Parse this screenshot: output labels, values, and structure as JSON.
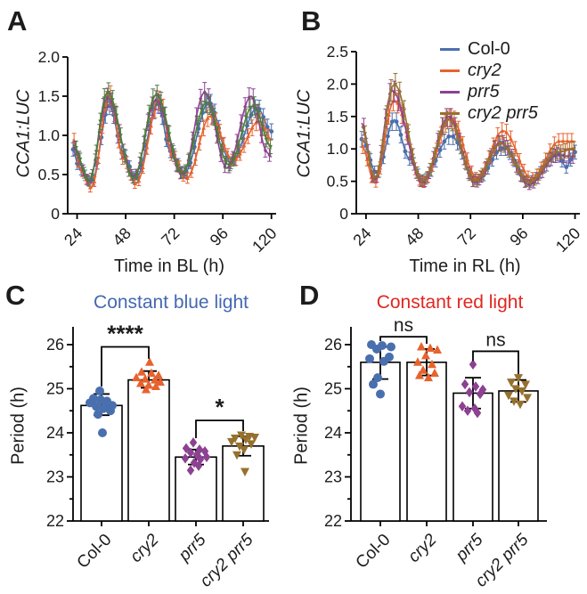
{
  "figure": {
    "background": "#ffffff"
  },
  "chart_data": [
    {
      "id": "A",
      "type": "line",
      "panel_label": "A",
      "xlabel": "Time in BL (h)",
      "ylabel": "CCA1:LUC",
      "ylabel_italic": true,
      "ylim": [
        0,
        2.0
      ],
      "xrange": [
        22,
        120
      ],
      "yticks": [
        [
          0,
          "0"
        ],
        [
          0.5,
          "0.5"
        ],
        [
          1.0,
          "1.0"
        ],
        [
          1.5,
          "1.5"
        ],
        [
          2.0,
          "2.0"
        ]
      ],
      "xticks": [
        [
          24,
          "24"
        ],
        [
          48,
          "48"
        ],
        [
          72,
          "72"
        ],
        [
          96,
          "96"
        ],
        [
          120,
          "120"
        ]
      ],
      "marker_step": 2,
      "err_base": 0.04,
      "err_amp": 0.11,
      "series": [
        {
          "name": "Col-0",
          "italic": false,
          "color": "#4a6fae",
          "marker": "circle",
          "anchors": [
            [
              22,
              0.82
            ],
            [
              25,
              0.58
            ],
            [
              31,
              0.4
            ],
            [
              40,
              1.38
            ],
            [
              47,
              0.75
            ],
            [
              53,
              0.45
            ],
            [
              64,
              1.4
            ],
            [
              70,
              0.8
            ],
            [
              77,
              0.52
            ],
            [
              89,
              1.42
            ],
            [
              100,
              0.65
            ],
            [
              113,
              1.35
            ],
            [
              120,
              1.05
            ]
          ]
        },
        {
          "name": "cry2",
          "italic": true,
          "color": "#e8622d",
          "marker": "triangle-up",
          "anchors": [
            [
              22,
              0.95
            ],
            [
              26,
              0.55
            ],
            [
              31,
              0.33
            ],
            [
              40,
              1.52
            ],
            [
              47,
              0.7
            ],
            [
              53,
              0.38
            ],
            [
              65,
              1.45
            ],
            [
              71,
              0.75
            ],
            [
              78,
              0.45
            ],
            [
              90,
              1.25
            ],
            [
              101,
              0.68
            ],
            [
              114,
              1.18
            ],
            [
              120,
              0.95
            ]
          ]
        },
        {
          "name": "prr5",
          "italic": true,
          "color": "#8d4192",
          "marker": "diamond",
          "anchors": [
            [
              22,
              0.85
            ],
            [
              30,
              0.42
            ],
            [
              39,
              1.48
            ],
            [
              52,
              0.48
            ],
            [
              63,
              1.45
            ],
            [
              76,
              0.5
            ],
            [
              87,
              1.55
            ],
            [
              98,
              0.58
            ],
            [
              110,
              1.5
            ],
            [
              118,
              0.78
            ],
            [
              120,
              0.72
            ]
          ]
        },
        {
          "name": "cry2 prr5",
          "italic": true,
          "color": "#4e7d3c",
          "marker": "triangle-down",
          "anchors": [
            [
              22,
              0.88
            ],
            [
              30,
              0.42
            ],
            [
              39,
              1.55
            ],
            [
              52,
              0.45
            ],
            [
              63,
              1.52
            ],
            [
              76,
              0.52
            ],
            [
              88,
              1.42
            ],
            [
              99,
              0.62
            ],
            [
              111,
              1.38
            ],
            [
              120,
              0.85
            ]
          ]
        }
      ]
    },
    {
      "id": "B",
      "type": "line",
      "panel_label": "B",
      "xlabel": "Time in RL (h)",
      "ylabel": "CCA1:LUC",
      "ylabel_italic": true,
      "ylim": [
        0,
        2.5
      ],
      "xrange": [
        22,
        120
      ],
      "yticks": [
        [
          0,
          "0"
        ],
        [
          0.5,
          "0.5"
        ],
        [
          1.0,
          "1.0"
        ],
        [
          1.5,
          "1.5"
        ],
        [
          2.0,
          "2.0"
        ],
        [
          2.5,
          "2.5"
        ]
      ],
      "xticks": [
        [
          24,
          "24"
        ],
        [
          48,
          "48"
        ],
        [
          72,
          "72"
        ],
        [
          96,
          "96"
        ],
        [
          120,
          "120"
        ]
      ],
      "marker_step": 2,
      "err_base": 0.05,
      "err_amp": 0.15,
      "legend": true,
      "series": [
        {
          "name": "Col-0",
          "italic": false,
          "color": "#4a6fae",
          "marker": "circle",
          "anchors": [
            [
              22,
              1.15
            ],
            [
              29,
              0.62
            ],
            [
              37,
              1.45
            ],
            [
              44,
              0.85
            ],
            [
              50,
              0.52
            ],
            [
              63,
              1.2
            ],
            [
              75,
              0.52
            ],
            [
              87,
              1.02
            ],
            [
              99,
              0.5
            ],
            [
              112,
              0.92
            ],
            [
              116,
              0.72
            ],
            [
              120,
              0.95
            ]
          ]
        },
        {
          "name": "cry2",
          "italic": true,
          "color": "#e8622d",
          "marker": "triangle-up",
          "anchors": [
            [
              22,
              1.05
            ],
            [
              28,
              0.48
            ],
            [
              37,
              1.75
            ],
            [
              50,
              0.48
            ],
            [
              63,
              1.48
            ],
            [
              75,
              0.55
            ],
            [
              87,
              1.28
            ],
            [
              100,
              0.55
            ],
            [
              113,
              1.12
            ],
            [
              120,
              1.12
            ]
          ]
        },
        {
          "name": "prr5",
          "italic": true,
          "color": "#8d4192",
          "marker": "diamond",
          "anchors": [
            [
              22,
              1.4
            ],
            [
              28,
              0.52
            ],
            [
              36,
              1.9
            ],
            [
              50,
              0.48
            ],
            [
              62,
              1.5
            ],
            [
              74,
              0.48
            ],
            [
              86,
              1.1
            ],
            [
              99,
              0.45
            ],
            [
              112,
              0.9
            ],
            [
              120,
              0.88
            ]
          ]
        },
        {
          "name": "cry2 prr5",
          "italic": true,
          "color": "#96712e",
          "marker": "triangle-down",
          "anchors": [
            [
              22,
              1.35
            ],
            [
              28,
              0.55
            ],
            [
              37,
              2.0
            ],
            [
              50,
              0.5
            ],
            [
              62,
              1.45
            ],
            [
              74,
              0.5
            ],
            [
              86,
              1.08
            ],
            [
              99,
              0.48
            ],
            [
              112,
              0.95
            ],
            [
              120,
              1.0
            ]
          ]
        }
      ]
    },
    {
      "id": "C",
      "type": "bar-scatter",
      "panel_label": "C",
      "title": "Constant blue light",
      "title_color": "#4468b1",
      "ylabel": "Period (h)",
      "ylabel_italic": false,
      "ylim": [
        22,
        26.4
      ],
      "minor_step": 0.5,
      "yticks": [
        [
          22,
          "22"
        ],
        [
          23,
          "23"
        ],
        [
          24,
          "24"
        ],
        [
          25,
          "25"
        ],
        [
          26,
          "26"
        ]
      ],
      "categories": [
        {
          "name": "Col-0",
          "italic": false,
          "color": "#4a6fae",
          "marker": "circle",
          "mean": 24.62,
          "err": [
            24.4,
            24.88
          ],
          "points": [
            [
              -2,
              24.95
            ],
            [
              -9,
              24.78
            ],
            [
              -1,
              24.75
            ],
            [
              6,
              24.72
            ],
            [
              -13,
              24.68
            ],
            [
              5,
              24.65
            ],
            [
              12,
              24.62
            ],
            [
              -6,
              24.6
            ],
            [
              2,
              24.55
            ],
            [
              10,
              24.5
            ],
            [
              -4,
              24.42
            ],
            [
              1,
              24.0
            ]
          ]
        },
        {
          "name": "cry2",
          "italic": true,
          "color": "#e8622d",
          "marker": "triangle-up",
          "mean": 25.2,
          "err": [
            25.02,
            25.4
          ],
          "points": [
            [
              1,
              25.6
            ],
            [
              -8,
              25.38
            ],
            [
              3,
              25.35
            ],
            [
              11,
              25.3
            ],
            [
              -14,
              25.25
            ],
            [
              -4,
              25.22
            ],
            [
              7,
              25.2
            ],
            [
              13,
              25.15
            ],
            [
              -9,
              25.12
            ],
            [
              0,
              25.08
            ],
            [
              8,
              25.05
            ],
            [
              -3,
              24.98
            ]
          ]
        },
        {
          "name": "prr5",
          "italic": true,
          "color": "#8d4192",
          "marker": "diamond",
          "mean": 23.45,
          "err": [
            23.28,
            23.62
          ],
          "points": [
            [
              -3,
              23.78
            ],
            [
              -11,
              23.65
            ],
            [
              4,
              23.62
            ],
            [
              10,
              23.58
            ],
            [
              -6,
              23.55
            ],
            [
              1,
              23.5
            ],
            [
              12,
              23.45
            ],
            [
              -12,
              23.42
            ],
            [
              5,
              23.4
            ],
            [
              -2,
              23.32
            ],
            [
              3,
              23.25
            ],
            [
              -6,
              23.15
            ]
          ]
        },
        {
          "name": "cry2 prr5",
          "italic": true,
          "color": "#96712e",
          "marker": "triangle-down",
          "mean": 23.7,
          "err": [
            23.48,
            23.92
          ],
          "points": [
            [
              -2,
              23.95
            ],
            [
              7,
              23.92
            ],
            [
              13,
              23.9
            ],
            [
              -9,
              23.88
            ],
            [
              3,
              23.85
            ],
            [
              -13,
              23.8
            ],
            [
              9,
              23.75
            ],
            [
              -4,
              23.7
            ],
            [
              1,
              23.62
            ],
            [
              -7,
              23.5
            ],
            [
              2,
              23.12
            ]
          ]
        }
      ],
      "sig": [
        {
          "a": 0,
          "b": 1,
          "label": "****",
          "y": 25.95,
          "la": 25.05,
          "lb": 25.68
        },
        {
          "a": 2,
          "b": 3,
          "label": "*",
          "y": 24.28,
          "la": 23.88,
          "lb": 24.04
        }
      ]
    },
    {
      "id": "D",
      "type": "bar-scatter",
      "panel_label": "D",
      "title": "Constant red light",
      "title_color": "#e02621",
      "ylabel": "Period (h)",
      "ylabel_italic": false,
      "ylim": [
        22,
        26.4
      ],
      "minor_step": 0.5,
      "yticks": [
        [
          22,
          "22"
        ],
        [
          23,
          "23"
        ],
        [
          24,
          "24"
        ],
        [
          25,
          "25"
        ],
        [
          26,
          "26"
        ]
      ],
      "categories": [
        {
          "name": "Col-0",
          "italic": false,
          "color": "#4a6fae",
          "marker": "circle",
          "mean": 25.6,
          "err": [
            25.22,
            25.95
          ],
          "points": [
            [
              -10,
              26.0
            ],
            [
              2,
              25.98
            ],
            [
              12,
              25.95
            ],
            [
              -4,
              25.9
            ],
            [
              10,
              25.72
            ],
            [
              -12,
              25.68
            ],
            [
              4,
              25.62
            ],
            [
              -3,
              25.25
            ],
            [
              -8,
              25.1
            ],
            [
              0,
              24.88
            ]
          ]
        },
        {
          "name": "cry2",
          "italic": true,
          "color": "#e8622d",
          "marker": "triangle-up",
          "mean": 25.6,
          "err": [
            25.3,
            25.9
          ],
          "points": [
            [
              -6,
              25.95
            ],
            [
              4,
              25.92
            ],
            [
              12,
              25.88
            ],
            [
              -1,
              25.75
            ],
            [
              -10,
              25.6
            ],
            [
              6,
              25.55
            ],
            [
              -4,
              25.42
            ],
            [
              9,
              25.35
            ],
            [
              -8,
              25.3
            ],
            [
              2,
              25.25
            ]
          ]
        },
        {
          "name": "prr5",
          "italic": true,
          "color": "#8d4192",
          "marker": "diamond",
          "mean": 24.9,
          "err": [
            24.55,
            25.25
          ],
          "points": [
            [
              0,
              25.55
            ],
            [
              -9,
              25.1
            ],
            [
              3,
              25.05
            ],
            [
              11,
              24.98
            ],
            [
              -4,
              24.92
            ],
            [
              8,
              24.88
            ],
            [
              -12,
              24.6
            ],
            [
              2,
              24.55
            ],
            [
              -6,
              24.5
            ],
            [
              5,
              24.45
            ]
          ]
        },
        {
          "name": "cry2 prr5",
          "italic": true,
          "color": "#96712e",
          "marker": "triangle-down",
          "mean": 24.95,
          "err": [
            24.7,
            25.2
          ],
          "points": [
            [
              0,
              25.25
            ],
            [
              -8,
              25.15
            ],
            [
              8,
              25.1
            ],
            [
              -3,
              25.0
            ],
            [
              4,
              24.95
            ],
            [
              -11,
              24.85
            ],
            [
              10,
              24.8
            ],
            [
              -5,
              24.72
            ],
            [
              2,
              24.65
            ]
          ]
        }
      ],
      "sig": [
        {
          "a": 0,
          "b": 1,
          "label": "ns",
          "y": 26.18,
          "la": 26.08,
          "lb": 26.02
        },
        {
          "a": 2,
          "b": 3,
          "label": "ns",
          "y": 25.85,
          "la": 25.63,
          "lb": 25.33
        }
      ]
    }
  ]
}
